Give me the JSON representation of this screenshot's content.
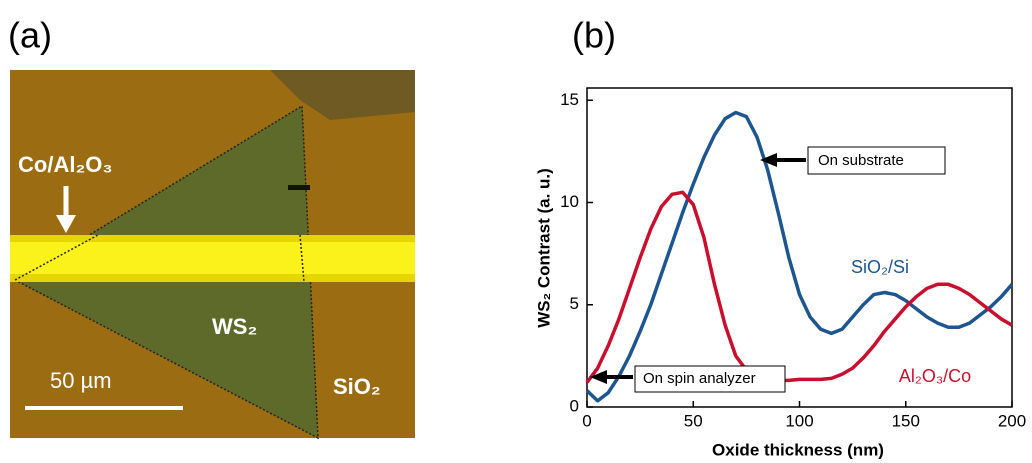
{
  "panel_a": {
    "label": "(a)",
    "electrode_label": "Co/Al₂O₃",
    "flake_label": "WS₂",
    "substrate_label": "SiO₂",
    "scale_label": "50 µm"
  },
  "chart_data": {
    "type": "line",
    "panel_label": "(b)",
    "x_label": "Oxide thickness (nm)",
    "y_label": "WS₂ Contrast (a. u.)",
    "x": [
      0,
      5,
      10,
      15,
      20,
      25,
      30,
      35,
      40,
      45,
      50,
      55,
      60,
      65,
      70,
      75,
      80,
      85,
      90,
      95,
      100,
      105,
      110,
      115,
      120,
      125,
      130,
      135,
      140,
      145,
      150,
      155,
      160,
      165,
      170,
      175,
      180,
      185,
      190,
      195,
      200
    ],
    "series": [
      {
        "name": "SiO₂/Si",
        "color": "#1d5591",
        "values": [
          0.8,
          0.3,
          0.7,
          1.5,
          2.5,
          3.7,
          5.0,
          6.5,
          8.0,
          9.5,
          10.9,
          12.2,
          13.3,
          14.1,
          14.4,
          14.2,
          13.2,
          11.6,
          9.5,
          7.3,
          5.5,
          4.4,
          3.8,
          3.6,
          3.8,
          4.4,
          5.0,
          5.5,
          5.6,
          5.5,
          5.2,
          4.8,
          4.4,
          4.1,
          3.9,
          3.9,
          4.1,
          4.5,
          4.9,
          5.4,
          6.0
        ]
      },
      {
        "name": "Al₂O₃/Co",
        "color": "#c8102e",
        "values": [
          1.2,
          1.9,
          3.0,
          4.3,
          5.8,
          7.3,
          8.7,
          9.8,
          10.4,
          10.5,
          9.9,
          8.3,
          6.0,
          4.0,
          2.5,
          1.8,
          1.5,
          1.4,
          1.3,
          1.3,
          1.35,
          1.35,
          1.35,
          1.4,
          1.6,
          1.9,
          2.4,
          3.0,
          3.7,
          4.3,
          4.9,
          5.4,
          5.8,
          6.0,
          6.0,
          5.8,
          5.5,
          5.1,
          4.7,
          4.3,
          4.0
        ]
      }
    ],
    "annotations": [
      "On substrate",
      "On spin analyzer"
    ],
    "xlim": [
      0,
      200
    ],
    "xticks": [
      0,
      50,
      100,
      150,
      200
    ],
    "ylim": [
      0,
      15.6
    ],
    "yticks": [
      0,
      5,
      10,
      15
    ]
  }
}
